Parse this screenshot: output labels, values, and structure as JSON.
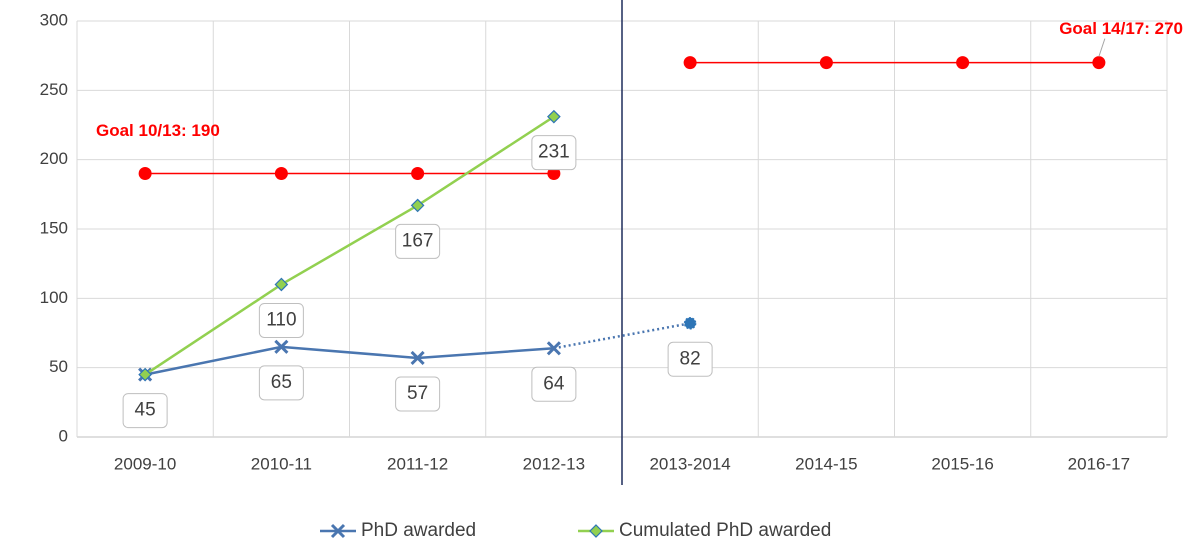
{
  "chart_data": {
    "type": "line",
    "categories": [
      "2009-10",
      "2010-11",
      "2011-12",
      "2012-13",
      "2013-2014",
      "2014-15",
      "2015-16",
      "2016-17"
    ],
    "ylim": [
      0,
      300
    ],
    "yticks": [
      0,
      50,
      100,
      150,
      200,
      250,
      300
    ],
    "grid": true,
    "divider_after": 3,
    "series": [
      {
        "name": "PhD awarded",
        "color": "#4a76b0",
        "marker": "x",
        "values": [
          45,
          65,
          57,
          64,
          82,
          null,
          null,
          null
        ],
        "dotted_from": 3,
        "data_labels": [
          true,
          true,
          true,
          true,
          true,
          false,
          false,
          false
        ]
      },
      {
        "name": "Cumulated PhD awarded",
        "color": "#92d050",
        "marker": "diamond",
        "values": [
          45,
          110,
          167,
          231,
          null,
          null,
          null,
          null
        ],
        "data_labels": [
          false,
          true,
          true,
          true,
          false,
          false,
          false,
          false
        ]
      }
    ],
    "goals": [
      {
        "label": "Goal 10/13: 190",
        "color": "#ff0000",
        "values": [
          190,
          190,
          190,
          190,
          null,
          null,
          null,
          null
        ]
      },
      {
        "label": "Goal 14/17: 270",
        "color": "#ff0000",
        "values": [
          null,
          null,
          null,
          null,
          270,
          270,
          270,
          270
        ]
      }
    ],
    "legend": "bottom"
  }
}
